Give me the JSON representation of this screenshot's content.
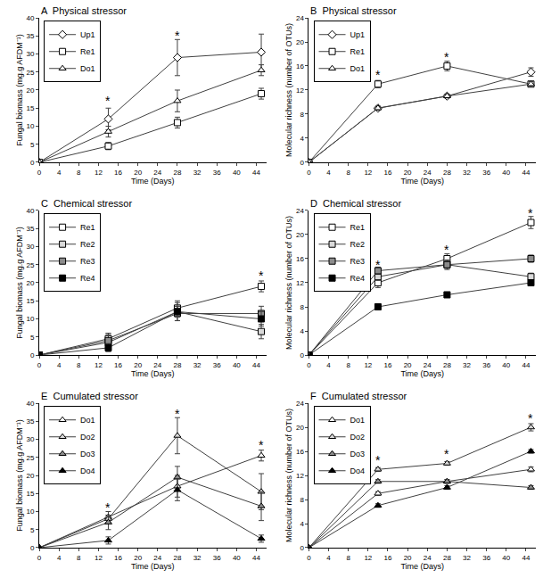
{
  "chart_data": [
    {
      "type": "line",
      "label": "A",
      "title": "Physical stressor",
      "x_label": "Time (Days)",
      "y_label": "Fungal biomass (mg.g AFDM⁻¹)",
      "x": [
        0,
        14,
        28,
        45
      ],
      "xlim": [
        0,
        46
      ],
      "xticks": [
        0,
        4,
        8,
        12,
        16,
        20,
        24,
        28,
        32,
        36,
        40,
        44
      ],
      "ylim": [
        0,
        40
      ],
      "yticks": [
        0,
        5,
        10,
        15,
        20,
        25,
        30,
        35,
        40
      ],
      "grid": false,
      "legend": "upper left",
      "series": [
        {
          "name": "Up1",
          "color": "#ffffff",
          "marker": "diamond",
          "values": [
            0,
            12,
            29,
            30.5
          ],
          "error": [
            0,
            3,
            5,
            5
          ]
        },
        {
          "name": "Re1",
          "color": "#ffffff",
          "marker": "square",
          "values": [
            0,
            4.5,
            11,
            19
          ],
          "error": [
            0,
            1,
            1.5,
            1.5
          ]
        },
        {
          "name": "Do1",
          "color": "#ffffff",
          "marker": "triangle-up",
          "values": [
            0,
            8.5,
            17,
            25.5
          ],
          "error": [
            0,
            1.5,
            3,
            1.5
          ]
        }
      ],
      "annotations": [
        {
          "x": 14,
          "y": 17,
          "text": "*"
        },
        {
          "x": 28,
          "y": 35,
          "text": "*"
        }
      ]
    },
    {
      "type": "line",
      "label": "B",
      "title": "Physical stressor",
      "x_label": "Time (Days)",
      "y_label": "Molecular richness (number of OTUs)",
      "x": [
        0,
        14,
        28,
        45
      ],
      "xlim": [
        0,
        46
      ],
      "xticks": [
        0,
        4,
        8,
        12,
        16,
        20,
        24,
        28,
        32,
        36,
        40,
        44
      ],
      "ylim": [
        0,
        24
      ],
      "yticks": [
        0,
        4,
        8,
        12,
        16,
        20,
        24
      ],
      "grid": false,
      "legend": "upper left",
      "series": [
        {
          "name": "Up1",
          "color": "#ffffff",
          "marker": "diamond",
          "values": [
            0,
            9,
            11,
            15
          ],
          "error": [
            0,
            0.3,
            0.3,
            0.7
          ]
        },
        {
          "name": "Re1",
          "color": "#ffffff",
          "marker": "square",
          "values": [
            0,
            13,
            16,
            13
          ],
          "error": [
            0,
            0.6,
            0.8,
            0.4
          ]
        },
        {
          "name": "Do1",
          "color": "#ffffff",
          "marker": "triangle-up",
          "values": [
            0,
            9,
            11,
            13
          ],
          "error": [
            0,
            0.3,
            0.3,
            0.4
          ]
        }
      ],
      "annotations": [
        {
          "x": 14,
          "y": 14.5,
          "text": "*"
        },
        {
          "x": 28,
          "y": 17.5,
          "text": "*"
        }
      ]
    },
    {
      "type": "line",
      "label": "C",
      "title": "Chemical stressor",
      "x_label": "Time (Days)",
      "y_label": "Fungal biomass (mg.g AFDM⁻¹)",
      "x": [
        0,
        14,
        28,
        45
      ],
      "xlim": [
        0,
        46
      ],
      "xticks": [
        0,
        4,
        8,
        12,
        16,
        20,
        24,
        28,
        32,
        36,
        40,
        44
      ],
      "ylim": [
        0,
        40
      ],
      "yticks": [
        0,
        5,
        10,
        15,
        20,
        25,
        30,
        35,
        40
      ],
      "grid": false,
      "legend": "upper left",
      "series": [
        {
          "name": "Re1",
          "color": "#ffffff",
          "marker": "square",
          "values": [
            0,
            4.5,
            13,
            19
          ],
          "error": [
            0,
            1.5,
            2,
            1.5
          ]
        },
        {
          "name": "Re2",
          "color": "#d9d9d9",
          "marker": "square",
          "values": [
            0,
            3.5,
            12,
            6.5
          ],
          "error": [
            0,
            2.5,
            2.5,
            2
          ]
        },
        {
          "name": "Re3",
          "color": "#8c8c8c",
          "marker": "square",
          "values": [
            0,
            4,
            11.5,
            11.5
          ],
          "error": [
            0,
            1.5,
            2,
            2
          ]
        },
        {
          "name": "Re4",
          "color": "#000000",
          "marker": "square",
          "values": [
            0,
            2,
            12,
            10
          ],
          "error": [
            0,
            1,
            1.5,
            2
          ]
        }
      ],
      "annotations": [
        {
          "x": 45,
          "y": 22,
          "text": "*"
        }
      ]
    },
    {
      "type": "line",
      "label": "D",
      "title": "Chemical stressor",
      "x_label": "Time (Days)",
      "y_label": "Molecular richness (number of OTUs)",
      "x": [
        0,
        14,
        28,
        45
      ],
      "xlim": [
        0,
        46
      ],
      "xticks": [
        0,
        4,
        8,
        12,
        16,
        20,
        24,
        28,
        32,
        36,
        40,
        44
      ],
      "ylim": [
        0,
        24
      ],
      "yticks": [
        0,
        4,
        8,
        12,
        16,
        20,
        24
      ],
      "grid": false,
      "legend": "upper left",
      "series": [
        {
          "name": "Re1",
          "color": "#ffffff",
          "marker": "square",
          "values": [
            0,
            12,
            16,
            22
          ],
          "error": [
            0,
            0.8,
            0.8,
            1
          ]
        },
        {
          "name": "Re2",
          "color": "#d9d9d9",
          "marker": "square",
          "values": [
            0,
            13,
            15,
            13
          ],
          "error": [
            0,
            0.6,
            0.8,
            0.6
          ]
        },
        {
          "name": "Re3",
          "color": "#8c8c8c",
          "marker": "square",
          "values": [
            0,
            14,
            15,
            16
          ],
          "error": [
            0,
            0.6,
            0.6,
            0.6
          ]
        },
        {
          "name": "Re4",
          "color": "#000000",
          "marker": "square",
          "values": [
            0,
            8,
            10,
            12
          ],
          "error": [
            0,
            0.3,
            0.3,
            0.3
          ]
        }
      ],
      "annotations": [
        {
          "x": 14,
          "y": 15,
          "text": "*"
        },
        {
          "x": 28,
          "y": 17.5,
          "text": "*"
        },
        {
          "x": 45,
          "y": 23.5,
          "text": "*"
        }
      ]
    },
    {
      "type": "line",
      "label": "E",
      "title": "Cumulated stressor",
      "x_label": "Time (Days)",
      "y_label": "Fungal biomass (mg.g AFDM⁻¹)",
      "x": [
        0,
        14,
        28,
        45
      ],
      "xlim": [
        0,
        46
      ],
      "xticks": [
        0,
        4,
        8,
        12,
        16,
        20,
        24,
        28,
        32,
        36,
        40,
        44
      ],
      "ylim": [
        0,
        40
      ],
      "yticks": [
        0,
        5,
        10,
        15,
        20,
        25,
        30,
        35,
        40
      ],
      "grid": false,
      "legend": "upper left",
      "series": [
        {
          "name": "Do1",
          "color": "#ffffff",
          "marker": "triangle-up",
          "values": [
            0,
            8.5,
            17,
            25.5
          ],
          "error": [
            0,
            1.5,
            3,
            1.5
          ]
        },
        {
          "name": "Do2",
          "color": "#d9d9d9",
          "marker": "triangle-up",
          "values": [
            0,
            8,
            31,
            15.5
          ],
          "error": [
            0,
            1,
            5,
            5
          ]
        },
        {
          "name": "Do3",
          "color": "#8c8c8c",
          "marker": "triangle-up",
          "values": [
            0,
            7,
            19.5,
            11.5
          ],
          "error": [
            0,
            2,
            3,
            4
          ]
        },
        {
          "name": "Do4",
          "color": "#000000",
          "marker": "triangle-up",
          "values": [
            0,
            2,
            16,
            2.5
          ],
          "error": [
            0,
            1,
            3,
            1
          ]
        }
      ],
      "annotations": [
        {
          "x": 14,
          "y": 11,
          "text": "*"
        },
        {
          "x": 28,
          "y": 37,
          "text": "*"
        },
        {
          "x": 45,
          "y": 28.5,
          "text": "*"
        }
      ]
    },
    {
      "type": "line",
      "label": "F",
      "title": "Cumulated stressor",
      "x_label": "Time (Days)",
      "y_label": "Molecular richness (number of OTUs)",
      "x": [
        0,
        14,
        28,
        45
      ],
      "xlim": [
        0,
        46
      ],
      "xticks": [
        0,
        4,
        8,
        12,
        16,
        20,
        24,
        28,
        32,
        36,
        40,
        44
      ],
      "ylim": [
        0,
        24
      ],
      "yticks": [
        0,
        4,
        8,
        12,
        16,
        20,
        24
      ],
      "grid": false,
      "legend": "upper left",
      "series": [
        {
          "name": "Do1",
          "color": "#ffffff",
          "marker": "triangle-up",
          "values": [
            0,
            9,
            11,
            13
          ],
          "error": [
            0,
            0.3,
            0.3,
            0.4
          ]
        },
        {
          "name": "Do2",
          "color": "#d9d9d9",
          "marker": "triangle-up",
          "values": [
            0,
            13,
            14,
            20
          ],
          "error": [
            0,
            0.3,
            0.3,
            0.6
          ]
        },
        {
          "name": "Do3",
          "color": "#8c8c8c",
          "marker": "triangle-up",
          "values": [
            0,
            11,
            11,
            10
          ],
          "error": [
            0,
            0.3,
            0.3,
            0.3
          ]
        },
        {
          "name": "Do4",
          "color": "#000000",
          "marker": "triangle-up",
          "values": [
            0,
            7,
            10,
            16
          ],
          "error": [
            0,
            0.3,
            0.3,
            0.3
          ]
        }
      ],
      "annotations": [
        {
          "x": 14,
          "y": 14.5,
          "text": "*"
        },
        {
          "x": 28,
          "y": 15.5,
          "text": "*"
        },
        {
          "x": 45,
          "y": 21.5,
          "text": "*"
        }
      ]
    }
  ]
}
